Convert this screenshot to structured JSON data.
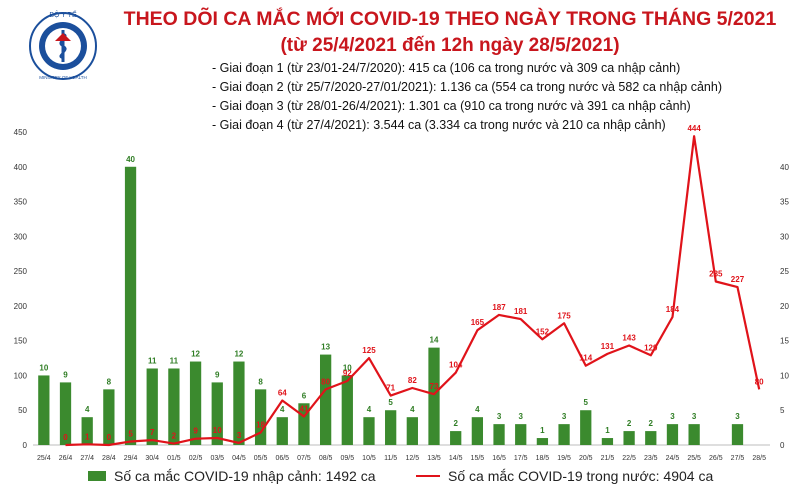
{
  "logo": {
    "top_text": "BỘ Y TẾ",
    "bottom_text": "MINISTRY OF HEALTH"
  },
  "header": {
    "title": "THEO DÕI CA MẮC MỚI COVID-19 THEO NGÀY TRONG THÁNG 5/2021",
    "subtitle": "(từ 25/4/2021 đến 12h ngày 28/5/2021)"
  },
  "notes": [
    "- Giai đoạn 1 (từ 23/01-24/7/2020): 415 ca (106 ca trong nước và 309 ca nhập cảnh)",
    "- Giai đoạn 2 (từ 25/7/2020-27/01/2021): 1.136 ca (554 ca trong nước và 582 ca nhập cảnh)",
    "- Giai đoạn 3 (từ 28/01-26/4/2021): 1.301 ca (910 ca trong nước và 391 ca nhập cảnh)",
    "- Giai đoạn 4 (từ 27/4/2021): 3.544 ca (3.334 ca trong nước và 210 ca nhập cảnh)"
  ],
  "legend": {
    "bar_label": "Số ca mắc COVID-19 nhập cảnh: 1492 ca",
    "line_label": "Số ca mắc COVID-19 trong nước: 4904 ca"
  },
  "colors": {
    "bar": "#3b8a2e",
    "line": "#e0131a",
    "title": "#c8161d"
  },
  "chart_data": {
    "type": "bar",
    "categories": [
      "25/4",
      "26/4",
      "27/4",
      "28/4",
      "29/4",
      "30/4",
      "01/5",
      "02/5",
      "03/5",
      "04/5",
      "05/5",
      "06/5",
      "07/5",
      "08/5",
      "09/5",
      "10/5",
      "11/5",
      "12/5",
      "13/5",
      "14/5",
      "15/5",
      "16/5",
      "17/5",
      "18/5",
      "19/5",
      "20/5",
      "21/5",
      "22/5",
      "23/5",
      "24/5",
      "25/5",
      "26/5",
      "27/5",
      "28/5"
    ],
    "series": [
      {
        "name": "Số ca mắc COVID-19 nhập cảnh: 1492 ca",
        "type": "bar",
        "axis": "right",
        "values": [
          10,
          9,
          4,
          8,
          40,
          11,
          11,
          12,
          9,
          12,
          8,
          4,
          6,
          13,
          10,
          4,
          5,
          4,
          14,
          2,
          4,
          3,
          3,
          1,
          3,
          5,
          1,
          2,
          2,
          3,
          3,
          null,
          3,
          null
        ],
        "labels": [
          "10",
          "9",
          "4",
          "8",
          "40",
          "11",
          "11",
          "12",
          "9",
          "12",
          "8",
          "4",
          "6",
          "13",
          "10",
          "4",
          "5",
          "4",
          "14",
          "2",
          "4",
          "3",
          "3",
          "1",
          "3",
          "5",
          "1",
          "2",
          "2",
          "3",
          "3",
          "",
          "3",
          ""
        ]
      },
      {
        "name": "Số ca mắc COVID-19 trong nước: 4904 ca",
        "type": "line",
        "axis": "left",
        "values": [
          null,
          0,
          1,
          0,
          5,
          7,
          2,
          9,
          10,
          3,
          18,
          64,
          41,
          80,
          92,
          125,
          71,
          82,
          73,
          104,
          165,
          187,
          181,
          152,
          175,
          114,
          131,
          143,
          129,
          184,
          444,
          235,
          227,
          80
        ],
        "labels": [
          "",
          "0",
          "1",
          "0",
          "5",
          "7",
          "2",
          "9",
          "10",
          "3",
          "18",
          "64",
          "41",
          "80",
          "92",
          "125",
          "71",
          "82",
          "73",
          "104",
          "165",
          "187",
          "181",
          "152",
          "175",
          "114",
          "131",
          "143",
          "129",
          "184",
          "444",
          "235",
          "227",
          "80"
        ]
      }
    ],
    "y_left": {
      "ylim": [
        0,
        450
      ],
      "ticks": [
        0,
        50,
        100,
        150,
        200,
        250,
        300,
        350,
        400,
        450
      ]
    },
    "y_right": {
      "ylim": [
        0,
        45
      ],
      "ticks": [
        0,
        5,
        10,
        15,
        20,
        25,
        30,
        35,
        40
      ]
    },
    "grid": false,
    "legend_position": "bottom"
  }
}
